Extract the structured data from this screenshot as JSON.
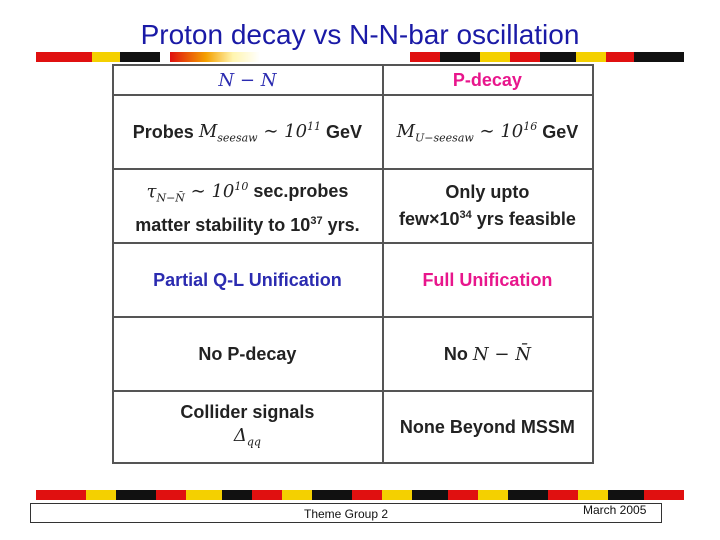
{
  "slide": {
    "title": "Proton decay vs N-N-bar oscillation"
  },
  "table": {
    "header": {
      "left": "N − N",
      "right": "P-decay"
    },
    "row1": {
      "left_word": "Probes",
      "left_math_sym": "M",
      "left_math_sub": "seesaw",
      "left_math_rest": "∼ 10",
      "left_exp": "11",
      "left_unit": "GeV",
      "right_math_sym": "M",
      "right_math_sub": "U−seesaw",
      "right_math_rest": "∼ 10",
      "right_exp": "16",
      "right_unit": "GeV"
    },
    "row2": {
      "left_tau": "τ",
      "left_tau_sub": "N−N̄",
      "left_rest1": "∼ 10",
      "left_exp1": "10",
      "left_text1": " sec.probes",
      "left_text2": "matter stability to 10",
      "left_exp2": "37",
      "left_text3": " yrs.",
      "right_line1": "Only upto",
      "right_line2a": "few×10",
      "right_exp": "34",
      "right_line2b": " yrs feasible"
    },
    "row3": {
      "left": "Partial Q-L Unification",
      "right": "Full Unification"
    },
    "row4": {
      "left": "No P-decay",
      "right_word": "No",
      "right_math": "N − N̄"
    },
    "row5": {
      "left_line1": "Collider signals",
      "left_delta": "Δ",
      "left_delta_sub": "qq",
      "right": "None Beyond MSSM"
    }
  },
  "footer": {
    "center": "Theme Group 2",
    "right": "March 2005"
  },
  "colors": {
    "title": "#1a1aa6",
    "blue_text": "#2b2bb0",
    "pink_text": "#e8168c",
    "stripe_red": "#e01010",
    "stripe_yellow": "#f4d000",
    "stripe_black": "#111111"
  }
}
